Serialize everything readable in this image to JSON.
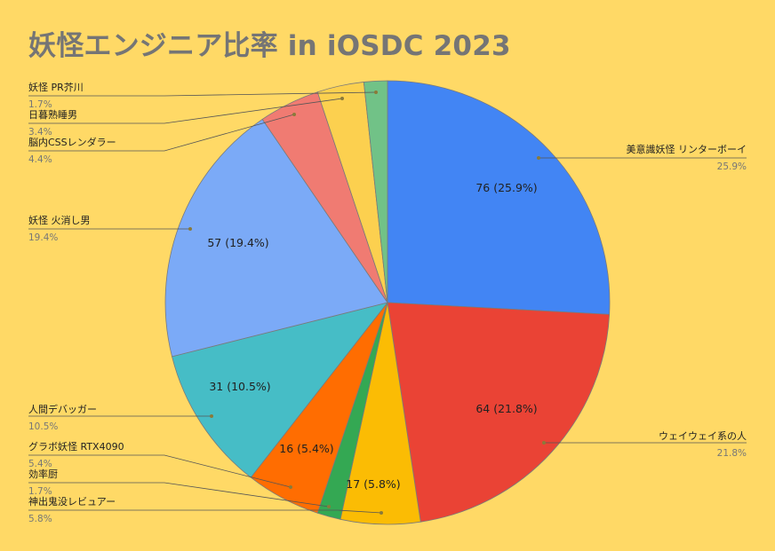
{
  "chart_data": {
    "type": "pie",
    "title": "妖怪エンジニア比率 in iOSDC 2023",
    "series": [
      {
        "label": "美意識妖怪 リンターボーイ",
        "value": 76,
        "percent": "25.9%",
        "color": "#4285f4"
      },
      {
        "label": "ウェイウェイ系の人",
        "value": 64,
        "percent": "21.8%",
        "color": "#ea4335"
      },
      {
        "label": "神出鬼没レビュアー",
        "value": 17,
        "percent": "5.8%",
        "color": "#fbbc04"
      },
      {
        "label": "効率厨",
        "value": 5,
        "percent": "1.7%",
        "color": "#34a853"
      },
      {
        "label": "グラボ妖怪 RTX4090",
        "value": 16,
        "percent": "5.4%",
        "color": "#ff6d01"
      },
      {
        "label": "人間デバッガー",
        "value": 31,
        "percent": "10.5%",
        "color": "#46bdc6"
      },
      {
        "label": "妖怪 火消し男",
        "value": 57,
        "percent": "19.4%",
        "color": "#7baaf7"
      },
      {
        "label": "脳内CSSレンダラー",
        "value": 13,
        "percent": "4.4%",
        "color": "#f07b72"
      },
      {
        "label": "日暮熟睡男",
        "value": 10,
        "percent": "3.4%",
        "color": "#fcd04f"
      },
      {
        "label": "妖怪 PR芥川",
        "value": 5,
        "percent": "1.7%",
        "color": "#71c287"
      }
    ],
    "slice_value_labels": [
      "76 (25.9%)",
      "64 (21.8%)",
      "17 (5.8%)",
      "16 (5.4%)",
      "31 (10.5%)",
      "57 (19.4%)"
    ],
    "legend": "callouts"
  }
}
